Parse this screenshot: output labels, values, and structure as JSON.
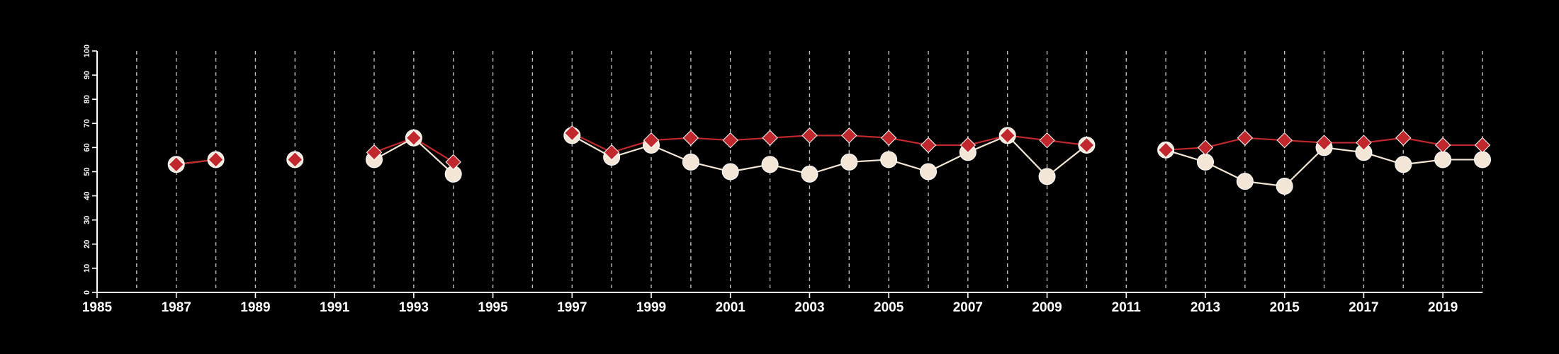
{
  "chart_data": {
    "type": "line",
    "title": "",
    "xlabel": "",
    "ylabel": "",
    "xlim": [
      1985,
      2020
    ],
    "ylim": [
      0,
      100
    ],
    "x_ticks": [
      1985,
      1987,
      1989,
      1991,
      1993,
      1995,
      1997,
      1999,
      2001,
      2003,
      2005,
      2007,
      2009,
      2011,
      2013,
      2015,
      2017,
      2019
    ],
    "y_ticks": [
      0,
      10,
      20,
      30,
      40,
      50,
      60,
      70,
      80,
      90,
      100
    ],
    "vertical_gridlines": "dashed, every year",
    "legend": "none",
    "series": [
      {
        "color": "#f3e6d6",
        "marker": "circle",
        "x": [
          1987,
          1988,
          1990,
          1992,
          1993,
          1994,
          1997,
          1998,
          1999,
          2000,
          2001,
          2002,
          2003,
          2004,
          2005,
          2006,
          2007,
          2008,
          2009,
          2010,
          2012,
          2013,
          2014,
          2015,
          2016,
          2017,
          2018,
          2019,
          2020
        ],
        "values": [
          53,
          55,
          55,
          55,
          64,
          49,
          65,
          56,
          61,
          54,
          50,
          53,
          49,
          54,
          55,
          50,
          58,
          65,
          48,
          61,
          59,
          54,
          46,
          44,
          60,
          58,
          53,
          55,
          55
        ]
      },
      {
        "color": "#c0282d",
        "marker": "diamond",
        "x": [
          1987,
          1988,
          1990,
          1992,
          1993,
          1994,
          1997,
          1998,
          1999,
          2000,
          2001,
          2002,
          2003,
          2004,
          2005,
          2006,
          2007,
          2008,
          2009,
          2010,
          2012,
          2013,
          2014,
          2015,
          2016,
          2017,
          2018,
          2019,
          2020
        ],
        "values": [
          53,
          55,
          55,
          58,
          64,
          54,
          66,
          58,
          63,
          64,
          63,
          64,
          65,
          65,
          64,
          61,
          61,
          65,
          63,
          61,
          59,
          60,
          64,
          63,
          62,
          62,
          64,
          61,
          61
        ]
      }
    ]
  }
}
